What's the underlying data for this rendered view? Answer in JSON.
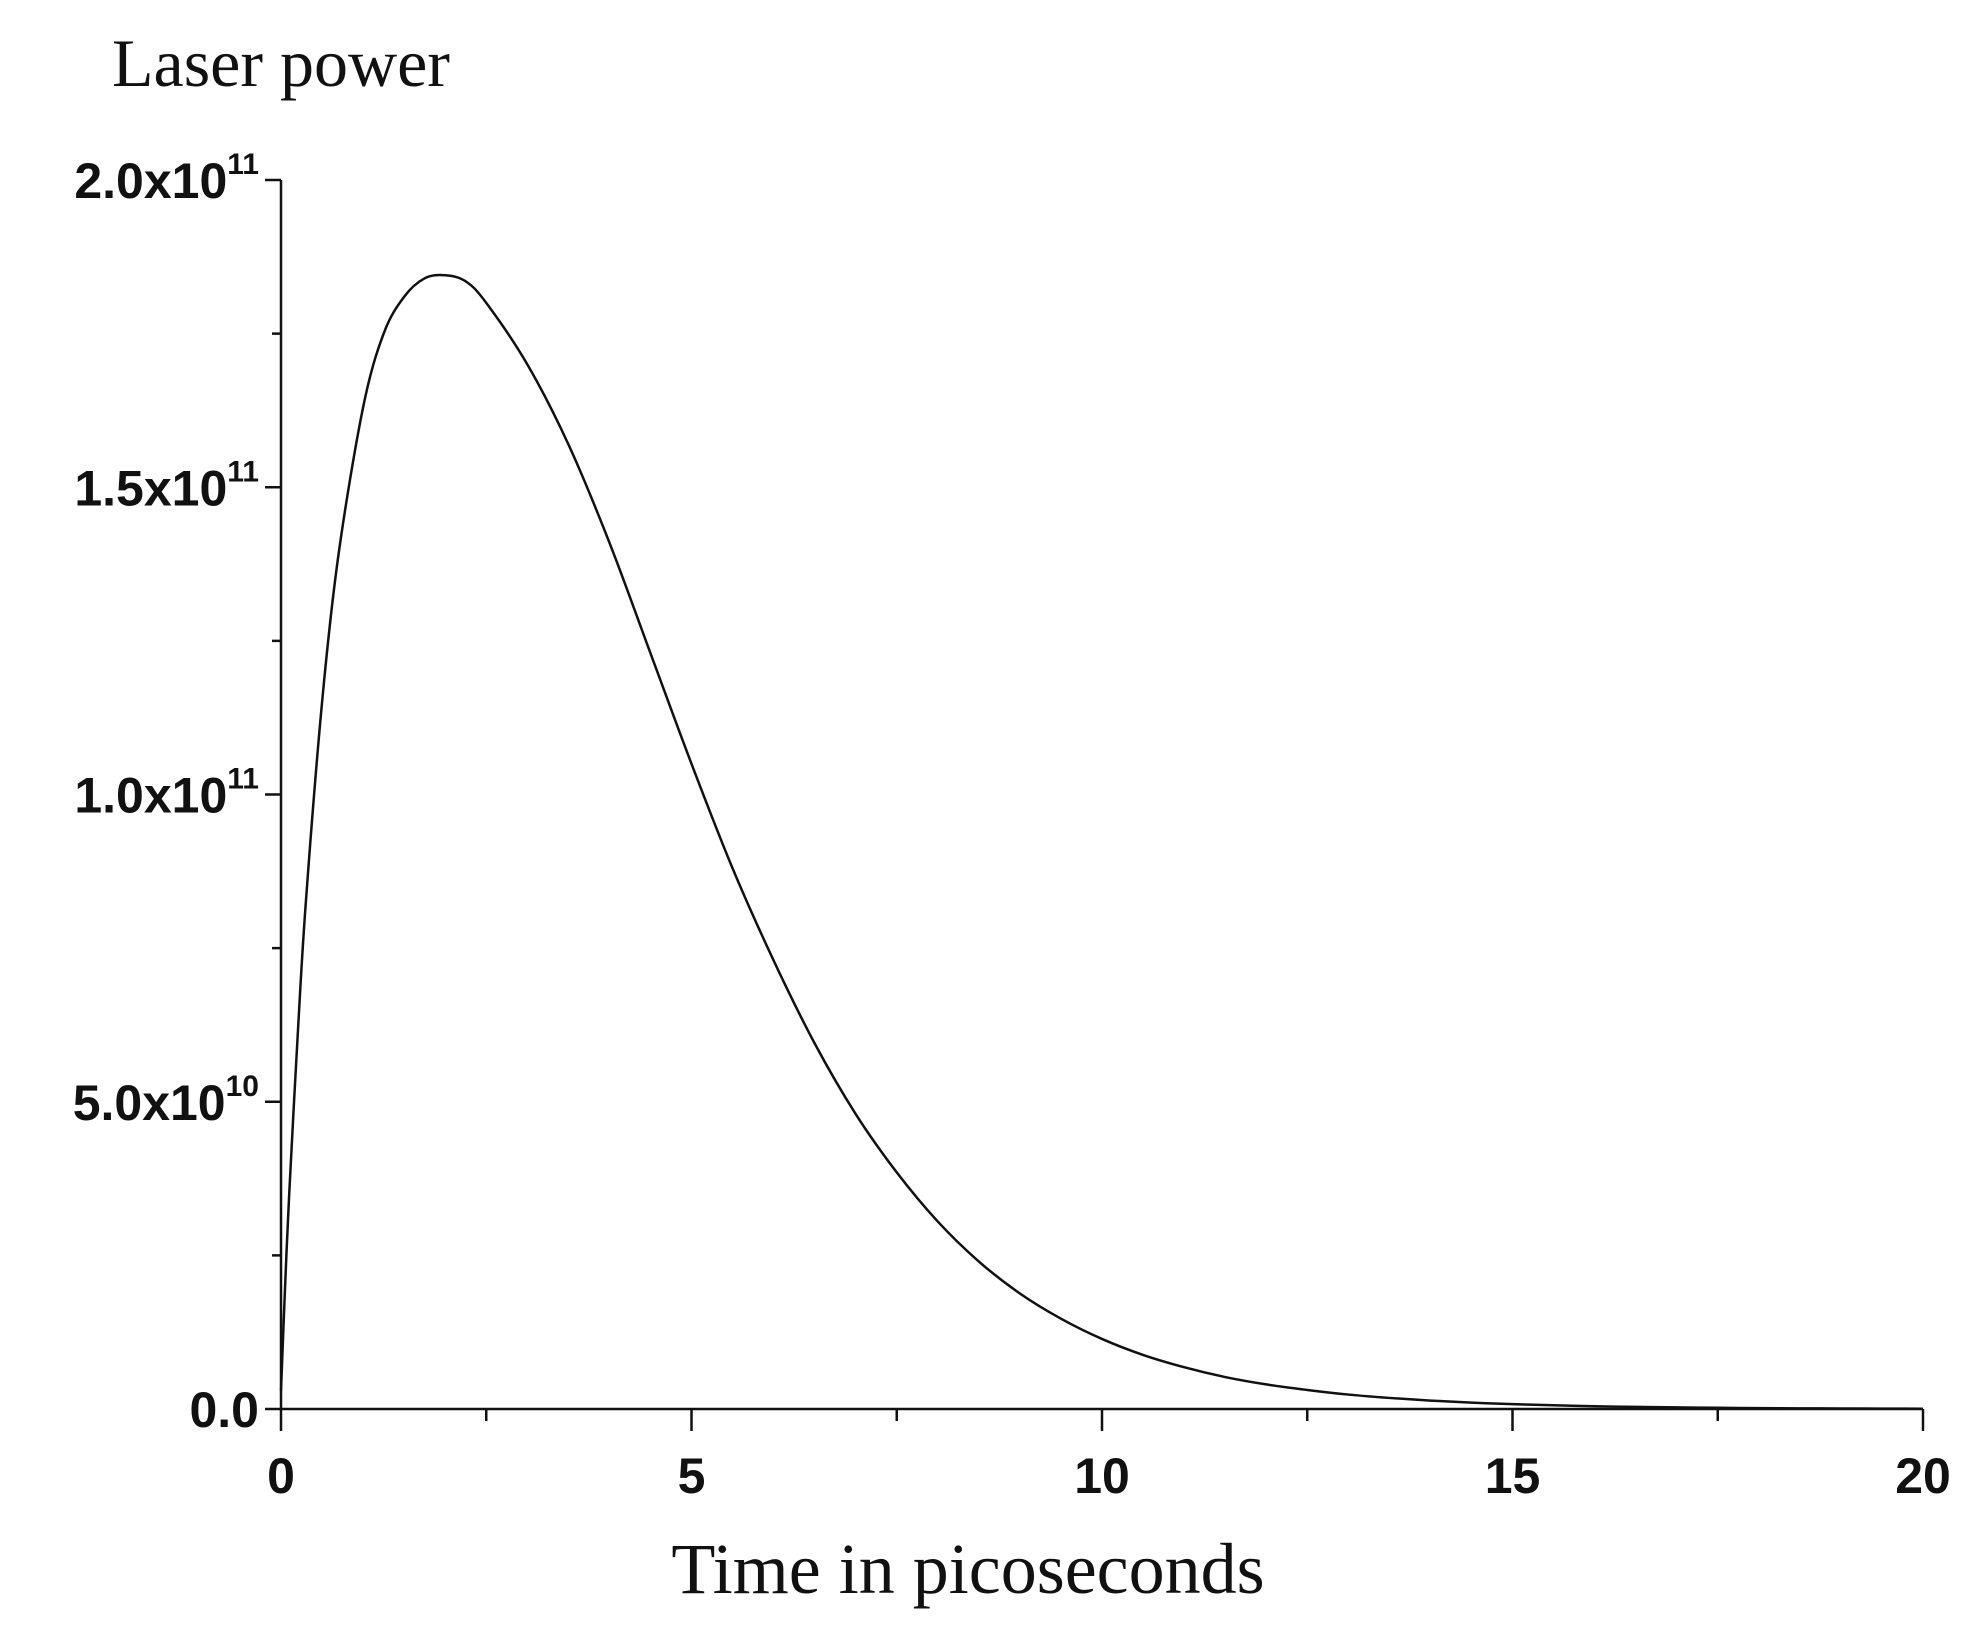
{
  "chart_data": {
    "type": "line",
    "ylabel": "Laser power",
    "xlabel": "Time in picoseconds",
    "xlim": [
      0,
      20
    ],
    "ylim": [
      0,
      200000000000
    ],
    "x_ticks": [
      {
        "value": 0,
        "label": "0"
      },
      {
        "value": 5,
        "label": "5"
      },
      {
        "value": 10,
        "label": "10"
      },
      {
        "value": 15,
        "label": "15"
      },
      {
        "value": 20,
        "label": "20"
      }
    ],
    "x_minor_ticks": [
      2.5,
      7.5,
      12.5,
      17.5
    ],
    "y_ticks": [
      {
        "value": 0,
        "mantissa": "0.0",
        "exponent": ""
      },
      {
        "value": 50000000000,
        "mantissa": "5.0x10",
        "exponent": "10"
      },
      {
        "value": 100000000000,
        "mantissa": "1.0x10",
        "exponent": "11"
      },
      {
        "value": 150000000000,
        "mantissa": "1.5x10",
        "exponent": "11"
      },
      {
        "value": 200000000000,
        "mantissa": "2.0x10",
        "exponent": "11"
      }
    ],
    "y_minor_ticks": [
      25000000000,
      75000000000,
      125000000000,
      175000000000
    ],
    "grid": false,
    "series": [
      {
        "x": [
          0,
          0.05,
          0.1,
          0.2,
          0.3,
          0.5,
          0.7,
          1.0,
          1.25,
          1.5,
          1.75,
          2.0,
          2.25,
          2.5,
          3.0,
          3.5,
          4.0,
          4.5,
          5.0,
          5.5,
          6.0,
          6.5,
          7.0,
          7.5,
          8.0,
          8.5,
          9.0,
          9.5,
          10.0,
          10.5,
          11.0,
          11.5,
          12.0,
          12.5,
          13.0,
          13.5,
          14.0,
          14.5,
          15.0,
          15.5,
          16.0,
          16.5,
          17.0,
          17.5,
          18.0,
          18.5,
          19.0,
          19.5,
          20.0
        ],
        "y": [
          3000000000,
          20000000000,
          35000000000,
          60000000000,
          82000000000,
          115000000000,
          139000000000,
          163000000000,
          175000000000,
          181000000000,
          184000000000,
          184500000000,
          183500000000,
          180000000000,
          170000000000,
          157000000000,
          141000000000,
          123000000000,
          105000000000,
          88000000000,
          73000000000,
          59500000000,
          48000000000,
          38500000000,
          30500000000,
          24000000000,
          18800000000,
          14700000000,
          11400000000,
          8800000000,
          6800000000,
          5200000000,
          4000000000,
          3100000000,
          2350000000,
          1800000000,
          1370000000,
          1040000000,
          790000000,
          600000000,
          450000000,
          340000000,
          260000000,
          195000000,
          147000000,
          111000000,
          84000000,
          63000000,
          48000000
        ]
      }
    ]
  }
}
